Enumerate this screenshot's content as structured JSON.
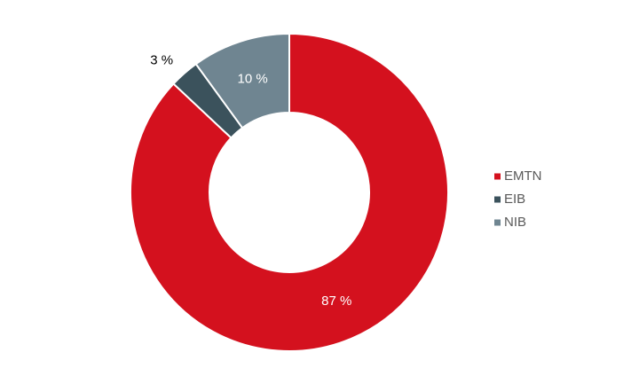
{
  "chart_data": {
    "type": "pie",
    "categories": [
      "EMTN",
      "EIB",
      "NIB"
    ],
    "values": [
      87,
      3,
      10
    ],
    "value_labels": [
      "87 %",
      "3 %",
      "10 %"
    ],
    "colors": [
      "#d4111e",
      "#3b525c",
      "#6f8591"
    ],
    "legend": "right"
  }
}
